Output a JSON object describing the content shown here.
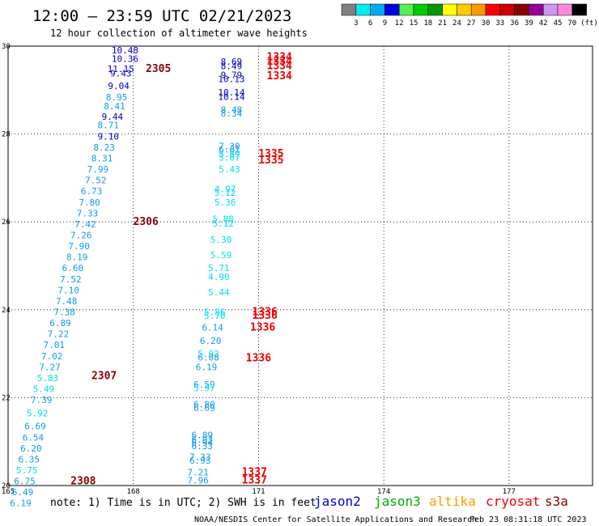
{
  "header": {
    "title": "12:00 — 23:59 UTC 02/21/2023",
    "subtitle": "12 hour collection of altimeter wave heights"
  },
  "colorbar": {
    "colors": [
      "#808080",
      "#00eeee",
      "#00aaee",
      "#0000dd",
      "#55ee55",
      "#00cc00",
      "#009900",
      "#ffff00",
      "#ffcc00",
      "#ff9900",
      "#ff0000",
      "#cc0000",
      "#880000",
      "#990099",
      "#cc99ee",
      "#ff88dd",
      "#000000"
    ],
    "labels": [
      "3",
      "6",
      "9",
      "12",
      "15",
      "18",
      "21",
      "24",
      "27",
      "30",
      "33",
      "36",
      "39",
      "42",
      "45",
      "70"
    ],
    "unit": "(ft)"
  },
  "footer": {
    "note": "note: 1) Time is in UTC; 2) SWH is in feet",
    "credit": "NOAA/NESDIS Center for Satellite Applications and Research",
    "timestamp": "Feb 23 08:31:18 UTC 2023"
  },
  "legend": [
    {
      "name": "jason2",
      "color": "#0000cc"
    },
    {
      "name": "jason3",
      "color": "#00aa00"
    },
    {
      "name": "altika",
      "color": "#ff9900"
    },
    {
      "name": "cryosat",
      "color": "#ee0000"
    },
    {
      "name": "s3a",
      "color": "#880000"
    }
  ],
  "chart_data": {
    "type": "scatter",
    "xlim": [
      165,
      179
    ],
    "ylim": [
      20,
      30
    ],
    "x_ticks": [
      "165",
      "168",
      "171",
      "174",
      "177"
    ],
    "y_ticks": [
      "20",
      "22",
      "24",
      "26",
      "28",
      "30"
    ],
    "grid": true,
    "wave_colors": {
      "s9": "#00ddee",
      "s12": "#1199ee",
      "s15": "#0000cc"
    },
    "time_colors": {
      "s3a": "#880000",
      "cryosat": "#ee0000"
    },
    "points": [
      {
        "x": 167.8,
        "y": 29.91,
        "v": "10.48",
        "c": "s15"
      },
      {
        "x": 167.8,
        "y": 29.71,
        "v": "10.36",
        "c": "s15"
      },
      {
        "x": 167.7,
        "y": 29.48,
        "v": "11.15",
        "c": "s15"
      },
      {
        "x": 167.7,
        "y": 29.38,
        "v": "9.43",
        "c": "s15"
      },
      {
        "x": 167.65,
        "y": 29.1,
        "v": "9.04",
        "c": "s15"
      },
      {
        "x": 167.6,
        "y": 28.84,
        "v": "8.95",
        "c": "s12"
      },
      {
        "x": 167.55,
        "y": 28.64,
        "v": "8.41",
        "c": "s12"
      },
      {
        "x": 167.5,
        "y": 28.4,
        "v": "9.44",
        "c": "s15"
      },
      {
        "x": 167.4,
        "y": 28.2,
        "v": "8.71",
        "c": "s12"
      },
      {
        "x": 167.4,
        "y": 27.95,
        "v": "9.10",
        "c": "s15"
      },
      {
        "x": 167.3,
        "y": 27.7,
        "v": "8.23",
        "c": "s12"
      },
      {
        "x": 167.25,
        "y": 27.45,
        "v": "8.31",
        "c": "s12"
      },
      {
        "x": 167.15,
        "y": 27.2,
        "v": "7.99",
        "c": "s12"
      },
      {
        "x": 167.1,
        "y": 26.95,
        "v": "7.52",
        "c": "s12"
      },
      {
        "x": 167.0,
        "y": 26.7,
        "v": "6.73",
        "c": "s12"
      },
      {
        "x": 166.95,
        "y": 26.45,
        "v": "7.80",
        "c": "s12"
      },
      {
        "x": 166.9,
        "y": 26.2,
        "v": "7.33",
        "c": "s12"
      },
      {
        "x": 166.85,
        "y": 25.95,
        "v": "7.42",
        "c": "s12"
      },
      {
        "x": 166.75,
        "y": 25.7,
        "v": "7.26",
        "c": "s12"
      },
      {
        "x": 166.7,
        "y": 25.45,
        "v": "7.90",
        "c": "s12"
      },
      {
        "x": 166.65,
        "y": 25.2,
        "v": "8.19",
        "c": "s12"
      },
      {
        "x": 166.55,
        "y": 24.95,
        "v": "6.60",
        "c": "s12"
      },
      {
        "x": 166.5,
        "y": 24.7,
        "v": "7.52",
        "c": "s12"
      },
      {
        "x": 166.45,
        "y": 24.45,
        "v": "7.10",
        "c": "s12"
      },
      {
        "x": 166.4,
        "y": 24.2,
        "v": "7.48",
        "c": "s12"
      },
      {
        "x": 166.35,
        "y": 23.95,
        "v": "7.38",
        "c": "s12"
      },
      {
        "x": 166.25,
        "y": 23.7,
        "v": "6.89",
        "c": "s12"
      },
      {
        "x": 166.2,
        "y": 23.45,
        "v": "7.22",
        "c": "s12"
      },
      {
        "x": 166.1,
        "y": 23.2,
        "v": "7.01",
        "c": "s12"
      },
      {
        "x": 166.05,
        "y": 22.95,
        "v": "7.02",
        "c": "s12"
      },
      {
        "x": 166.0,
        "y": 22.7,
        "v": "7.27",
        "c": "s12"
      },
      {
        "x": 165.95,
        "y": 22.45,
        "v": "5.83",
        "c": "s9"
      },
      {
        "x": 165.85,
        "y": 22.2,
        "v": "5.49",
        "c": "s9"
      },
      {
        "x": 165.8,
        "y": 21.95,
        "v": "7.39",
        "c": "s12"
      },
      {
        "x": 165.7,
        "y": 21.65,
        "v": "5.92",
        "c": "s9"
      },
      {
        "x": 165.65,
        "y": 21.35,
        "v": "6.69",
        "c": "s12"
      },
      {
        "x": 165.6,
        "y": 21.1,
        "v": "6.54",
        "c": "s12"
      },
      {
        "x": 165.55,
        "y": 20.85,
        "v": "6.20",
        "c": "s12"
      },
      {
        "x": 165.5,
        "y": 20.6,
        "v": "6.35",
        "c": "s12"
      },
      {
        "x": 165.45,
        "y": 20.35,
        "v": "5.75",
        "c": "s9"
      },
      {
        "x": 165.4,
        "y": 20.1,
        "v": "6.75",
        "c": "s12"
      },
      {
        "x": 165.35,
        "y": 19.85,
        "v": "6.49",
        "c": "s12"
      },
      {
        "x": 165.3,
        "y": 19.6,
        "v": "6.19",
        "c": "s12"
      },
      {
        "x": 170.35,
        "y": 29.65,
        "v": "8.69",
        "c": "s15"
      },
      {
        "x": 170.35,
        "y": 29.55,
        "v": "8.49",
        "c": "s15"
      },
      {
        "x": 170.35,
        "y": 29.35,
        "v": "9.79",
        "c": "s15"
      },
      {
        "x": 170.35,
        "y": 29.25,
        "v": "10.13",
        "c": "s15"
      },
      {
        "x": 170.35,
        "y": 28.95,
        "v": "10.14",
        "c": "s15"
      },
      {
        "x": 170.35,
        "y": 28.85,
        "v": "10.14",
        "c": "s15"
      },
      {
        "x": 170.35,
        "y": 28.55,
        "v": "8.48",
        "c": "s12"
      },
      {
        "x": 170.35,
        "y": 28.47,
        "v": "8.34",
        "c": "s12"
      },
      {
        "x": 170.3,
        "y": 27.73,
        "v": "7.30",
        "c": "s12"
      },
      {
        "x": 170.3,
        "y": 27.65,
        "v": "6.61",
        "c": "s12"
      },
      {
        "x": 170.3,
        "y": 27.55,
        "v": "5.89",
        "c": "s9"
      },
      {
        "x": 170.3,
        "y": 27.47,
        "v": "5.07",
        "c": "s9"
      },
      {
        "x": 170.3,
        "y": 27.2,
        "v": "5.43",
        "c": "s9"
      },
      {
        "x": 170.2,
        "y": 26.75,
        "v": "4.97",
        "c": "s9"
      },
      {
        "x": 170.2,
        "y": 26.67,
        "v": "5.12",
        "c": "s9"
      },
      {
        "x": 170.2,
        "y": 26.45,
        "v": "5.36",
        "c": "s9"
      },
      {
        "x": 170.15,
        "y": 26.07,
        "v": "5.88",
        "c": "s9"
      },
      {
        "x": 170.15,
        "y": 25.97,
        "v": "5.12",
        "c": "s9"
      },
      {
        "x": 170.1,
        "y": 25.6,
        "v": "5.30",
        "c": "s9"
      },
      {
        "x": 170.1,
        "y": 25.25,
        "v": "5.59",
        "c": "s9"
      },
      {
        "x": 170.05,
        "y": 24.95,
        "v": "5.71",
        "c": "s9"
      },
      {
        "x": 170.05,
        "y": 24.75,
        "v": "4.90",
        "c": "s9"
      },
      {
        "x": 170.05,
        "y": 24.4,
        "v": "5.44",
        "c": "s9"
      },
      {
        "x": 169.95,
        "y": 23.95,
        "v": "5.86",
        "c": "s9"
      },
      {
        "x": 169.95,
        "y": 23.87,
        "v": "5.70",
        "c": "s9"
      },
      {
        "x": 169.9,
        "y": 23.6,
        "v": "6.14",
        "c": "s12"
      },
      {
        "x": 169.85,
        "y": 23.3,
        "v": "6.20",
        "c": "s12"
      },
      {
        "x": 169.8,
        "y": 23.0,
        "v": "5.92",
        "c": "s9"
      },
      {
        "x": 169.8,
        "y": 22.92,
        "v": "6.08",
        "c": "s12"
      },
      {
        "x": 169.75,
        "y": 22.7,
        "v": "6.19",
        "c": "s12"
      },
      {
        "x": 169.7,
        "y": 22.3,
        "v": "6.59",
        "c": "s12"
      },
      {
        "x": 169.7,
        "y": 22.22,
        "v": "5.97",
        "c": "s9"
      },
      {
        "x": 169.7,
        "y": 21.85,
        "v": "6.80",
        "c": "s12"
      },
      {
        "x": 169.7,
        "y": 21.77,
        "v": "6.69",
        "c": "s12"
      },
      {
        "x": 169.65,
        "y": 21.15,
        "v": "6.89",
        "c": "s12"
      },
      {
        "x": 169.65,
        "y": 21.05,
        "v": "6.93",
        "c": "s12"
      },
      {
        "x": 169.65,
        "y": 20.98,
        "v": "6.94",
        "c": "s12"
      },
      {
        "x": 169.65,
        "y": 20.9,
        "v": "6.33",
        "c": "s12"
      },
      {
        "x": 169.6,
        "y": 20.65,
        "v": "7.33",
        "c": "s12"
      },
      {
        "x": 169.6,
        "y": 20.57,
        "v": "6.93",
        "c": "s12"
      },
      {
        "x": 169.55,
        "y": 20.3,
        "v": "7.21",
        "c": "s12"
      },
      {
        "x": 169.55,
        "y": 20.12,
        "v": "7.96",
        "c": "s12"
      }
    ],
    "time_labels": [
      {
        "x": 168.6,
        "y": 29.48,
        "v": "2305",
        "c": "s3a"
      },
      {
        "x": 168.3,
        "y": 26.0,
        "v": "2306",
        "c": "s3a"
      },
      {
        "x": 167.3,
        "y": 22.5,
        "v": "2307",
        "c": "s3a"
      },
      {
        "x": 166.8,
        "y": 20.1,
        "v": "2308",
        "c": "s3a"
      },
      {
        "x": 171.5,
        "y": 29.75,
        "v": "1334",
        "c": "cryosat"
      },
      {
        "x": 171.5,
        "y": 29.65,
        "v": "1334",
        "c": "cryosat"
      },
      {
        "x": 171.5,
        "y": 29.55,
        "v": "1334",
        "c": "cryosat"
      },
      {
        "x": 171.5,
        "y": 29.32,
        "v": "1334",
        "c": "cryosat"
      },
      {
        "x": 171.3,
        "y": 27.55,
        "v": "1335",
        "c": "cryosat"
      },
      {
        "x": 171.3,
        "y": 27.4,
        "v": "1335",
        "c": "cryosat"
      },
      {
        "x": 171.15,
        "y": 23.95,
        "v": "1336",
        "c": "cryosat"
      },
      {
        "x": 171.15,
        "y": 23.87,
        "v": "1336",
        "c": "cryosat"
      },
      {
        "x": 171.1,
        "y": 23.6,
        "v": "1336",
        "c": "cryosat"
      },
      {
        "x": 171.0,
        "y": 22.9,
        "v": "1336",
        "c": "cryosat"
      },
      {
        "x": 170.9,
        "y": 20.3,
        "v": "1337",
        "c": "cryosat"
      },
      {
        "x": 170.9,
        "y": 20.12,
        "v": "1337",
        "c": "cryosat"
      }
    ]
  }
}
